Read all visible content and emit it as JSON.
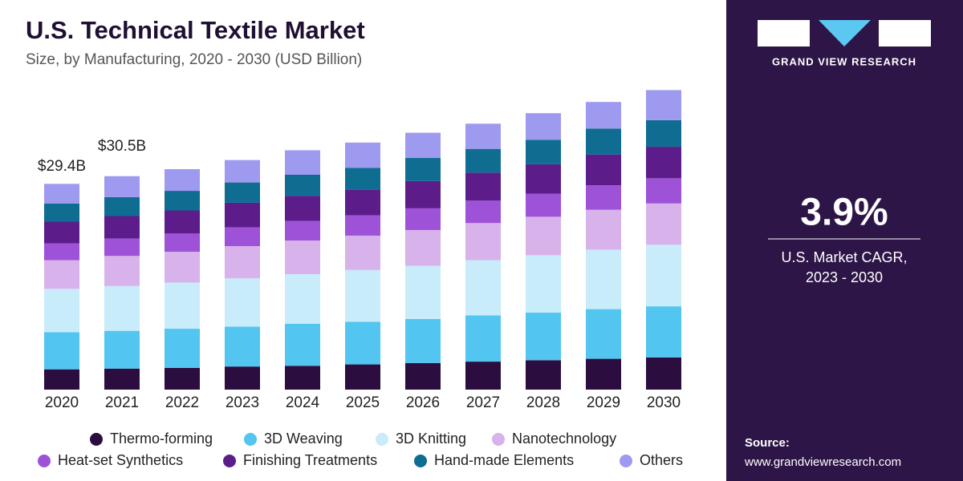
{
  "chart_data": {
    "type": "stacked_bar",
    "title": "U.S. Technical Textile Market",
    "subtitle": "Size, by Manufacturing, 2020 - 2030 (USD Billion)",
    "categories": [
      "2020",
      "2021",
      "2022",
      "2023",
      "2024",
      "2025",
      "2026",
      "2027",
      "2028",
      "2029",
      "2030"
    ],
    "series": [
      {
        "name": "Thermo-forming",
        "color": "#2b0e3f",
        "values": [
          2.9,
          3.0,
          3.1,
          3.3,
          3.4,
          3.6,
          3.8,
          4.0,
          4.2,
          4.4,
          4.6
        ]
      },
      {
        "name": "3D Weaving",
        "color": "#52c5f1",
        "values": [
          5.3,
          5.4,
          5.6,
          5.7,
          6.0,
          6.1,
          6.3,
          6.6,
          6.8,
          7.1,
          7.3
        ]
      },
      {
        "name": "3D Knitting",
        "color": "#c8ecfa",
        "values": [
          6.2,
          6.4,
          6.6,
          6.9,
          7.1,
          7.4,
          7.6,
          7.9,
          8.2,
          8.5,
          8.8
        ]
      },
      {
        "name": "Nanotechnology",
        "color": "#d8b2eb",
        "values": [
          4.1,
          4.3,
          4.4,
          4.6,
          4.8,
          4.9,
          5.1,
          5.3,
          5.5,
          5.7,
          5.9
        ]
      },
      {
        "name": "Heat-set Synthetics",
        "color": "#9d52d8",
        "values": [
          2.4,
          2.5,
          2.6,
          2.7,
          2.8,
          2.9,
          3.1,
          3.2,
          3.3,
          3.5,
          3.6
        ]
      },
      {
        "name": "Finishing Treatments",
        "color": "#5c1d8b",
        "values": [
          3.1,
          3.2,
          3.3,
          3.5,
          3.6,
          3.7,
          3.9,
          4.0,
          4.2,
          4.4,
          4.5
        ]
      },
      {
        "name": "Hand-made Elements",
        "color": "#0f6d91",
        "values": [
          2.6,
          2.7,
          2.8,
          2.9,
          3.0,
          3.1,
          3.3,
          3.4,
          3.5,
          3.7,
          3.8
        ]
      },
      {
        "name": "Others",
        "color": "#9e9aef",
        "values": [
          2.8,
          3.0,
          3.1,
          3.2,
          3.5,
          3.6,
          3.6,
          3.6,
          3.8,
          3.8,
          4.3
        ]
      }
    ],
    "annotations": [
      "$29.4B",
      "$30.5B"
    ]
  },
  "panel": {
    "brand": "GRAND VIEW RESEARCH",
    "cagr": "3.9%",
    "cagr_label_1": "U.S. Market CAGR,",
    "cagr_label_2": "2023 - 2030",
    "source_label": "Source:",
    "source_url": "www.grandviewresearch.com"
  }
}
